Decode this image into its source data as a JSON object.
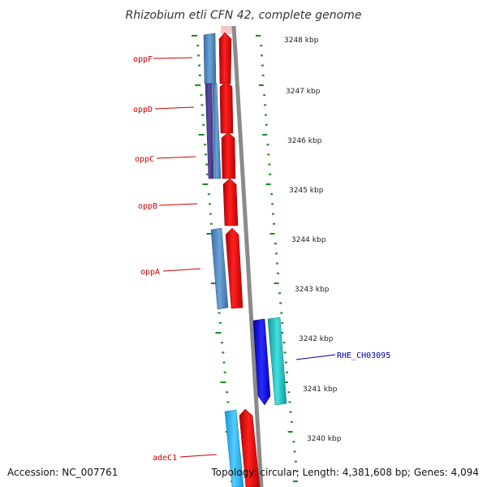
{
  "title": "Rhizobium etli CFN 42, complete genome",
  "footer": {
    "accession": "Accession: NC_007761",
    "topology": "Topology: circular; Length: 4,381,608 bp; Genes: 4,094"
  },
  "kbp_labels": [
    "3248 kbp",
    "3247 kbp",
    "3246 kbp",
    "3245 kbp",
    "3244 kbp",
    "3243 kbp",
    "3242 kbp",
    "3241 kbp",
    "3240 kbp"
  ],
  "gene_labels": [
    {
      "id": "oppF",
      "text": "oppF",
      "color": "#cc0000"
    },
    {
      "id": "oppD",
      "text": "oppD",
      "color": "#cc0000"
    },
    {
      "id": "oppC",
      "text": "oppC",
      "color": "#cc0000"
    },
    {
      "id": "oppB",
      "text": "oppB",
      "color": "#cc0000"
    },
    {
      "id": "oppA",
      "text": "oppA",
      "color": "#cc0000"
    },
    {
      "id": "RHE_CH03095",
      "text": "RHE_CH03095",
      "color": "#000099"
    },
    {
      "id": "adeC1",
      "text": "adeC1",
      "color": "#cc0000"
    }
  ],
  "colors": {
    "forward_strand": "#ff0000",
    "reverse_strand_light": "#4a86c0",
    "reverse_strand_dark": "#4b3f8f",
    "backbone": "#888888",
    "scale_ticks": "#1a8a1a",
    "blue_gene": "#0000ee",
    "cyan_gene": "#22cccc",
    "light_blue_gene": "#22bbff"
  }
}
